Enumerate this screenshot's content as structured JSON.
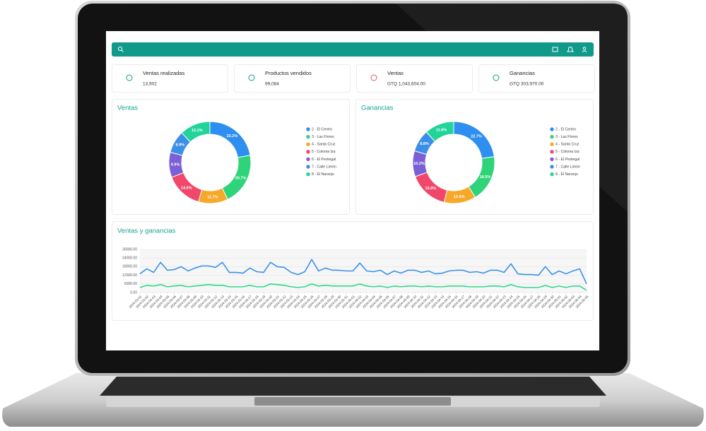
{
  "cards": [
    {
      "title": "Ventas realizadas",
      "value": "13,902"
    },
    {
      "title": "Productos vendidos",
      "value": "99,084"
    },
    {
      "title": "Ventas",
      "value": "GTQ 1,043,604.00"
    },
    {
      "title": "Ganancias",
      "value": "GTQ 303,970.00"
    }
  ],
  "chart_data": [
    {
      "type": "pie",
      "title": "Ventas",
      "categories": [
        "2 - El Centro",
        "3 - Las Flores",
        "4 - Santa Cruz",
        "5 - Colonia Iza",
        "6 - El Pedregal",
        "7 - Calle Limón",
        "8 - El Naranjo"
      ],
      "values": [
        22.2,
        20.7,
        11.7,
        14.6,
        9.9,
        8.9,
        12.1
      ],
      "value_labels": [
        "22.2%",
        "20.7%",
        "11.7%",
        "14.6%",
        "9.9%",
        "8.9%",
        "12.1%"
      ],
      "colors": [
        "#2e8ff0",
        "#2fd47a",
        "#f7a828",
        "#f0476a",
        "#7a5fd6",
        "#3b8fe8",
        "#22d39a"
      ]
    },
    {
      "type": "pie",
      "title": "Ganancias",
      "categories": [
        "2 - El Centro",
        "3 - Las Flores",
        "4 - Santa Cruz",
        "5 - Colonia Iza",
        "6 - El Pedregal",
        "7 - Calle Limón",
        "8 - El Naranjo"
      ],
      "values": [
        22.7,
        18.5,
        12.6,
        15.6,
        10.2,
        8.8,
        11.6
      ],
      "value_labels": [
        "22.7%",
        "18.5%",
        "12.6%",
        "15.6%",
        "10.2%",
        "8.8%",
        "11.6%"
      ],
      "colors": [
        "#2e8ff0",
        "#2fd47a",
        "#f7a828",
        "#f0476a",
        "#7a5fd6",
        "#3b8fe8",
        "#22d39a"
      ]
    },
    {
      "type": "line",
      "title": "Ventas y ganancias",
      "x": [
        "2024-03-01",
        "2024-03-02",
        "2024-03-03",
        "2024-03-04",
        "2024-03-05",
        "2024-03-06",
        "2024-03-07",
        "2024-03-08",
        "2024-03-09",
        "2024-03-10",
        "2024-03-11",
        "2024-03-12",
        "2024-03-13",
        "2024-03-14",
        "2024-03-15",
        "2024-03-16",
        "2024-03-17",
        "2024-03-18",
        "2024-03-19",
        "2024-03-20",
        "2024-03-21",
        "2024-03-22",
        "2024-03-23",
        "2024-03-24",
        "2024-03-25",
        "2024-03-26",
        "2024-03-27",
        "2024-03-28",
        "2024-03-29",
        "2024-03-30",
        "2024-03-31",
        "2024-04-01",
        "2024-04-02",
        "2024-04-03",
        "2024-04-04",
        "2024-04-05",
        "2024-04-06",
        "2024-04-07",
        "2024-04-08",
        "2024-04-09",
        "2024-04-10",
        "2024-04-11",
        "2024-04-12",
        "2024-04-13",
        "2024-04-14",
        "2024-04-15",
        "2024-04-16",
        "2024-04-17",
        "2024-04-18",
        "2024-04-19",
        "2024-04-20",
        "2024-04-21",
        "2024-04-22",
        "2024-04-23",
        "2024-04-24",
        "2024-04-25",
        "2024-04-26",
        "2024-04-27",
        "2024-04-28",
        "2024-04-29",
        "2024-04-30",
        "2024-05-01",
        "2024-05-02",
        "2024-05-03",
        "2024-05-04",
        "2024-05-05"
      ],
      "ylim": [
        0,
        30000
      ],
      "yticks": [
        {
          "value": 0,
          "label": "0.00"
        },
        {
          "value": 6000,
          "label": "6000.00"
        },
        {
          "value": 12000,
          "label": "12000.00"
        },
        {
          "value": 18000,
          "label": "18000.00"
        },
        {
          "value": 24000,
          "label": "24000.00"
        },
        {
          "value": 30000,
          "label": "30000.00"
        }
      ],
      "grid": true,
      "series": [
        {
          "color": "#3a92ea",
          "values": [
            13000,
            16500,
            14000,
            21000,
            15500,
            16000,
            18000,
            15000,
            17000,
            18500,
            18500,
            17500,
            21000,
            14000,
            14000,
            13500,
            17000,
            14500,
            14000,
            21000,
            18000,
            17500,
            14000,
            12500,
            14500,
            23000,
            15000,
            17000,
            15500,
            15500,
            15000,
            15000,
            20500,
            15000,
            14500,
            15500,
            12500,
            15000,
            13500,
            15500,
            15500,
            14000,
            15000,
            13000,
            13500,
            15000,
            15500,
            15500,
            14000,
            14500,
            13500,
            15500,
            15500,
            14000,
            20000,
            13000,
            12500,
            12500,
            12000,
            18000,
            12500,
            15000,
            13000,
            15000,
            16500,
            6000
          ]
        },
        {
          "color": "#2fd98f",
          "values": [
            3500,
            5000,
            4500,
            5500,
            4000,
            4500,
            5000,
            4000,
            4500,
            5000,
            5500,
            5000,
            5000,
            4000,
            4000,
            4000,
            5000,
            4000,
            4000,
            6000,
            5500,
            5000,
            4000,
            3500,
            4000,
            6000,
            4500,
            5000,
            4500,
            4500,
            4500,
            4500,
            6000,
            4500,
            4000,
            4500,
            3500,
            4500,
            4000,
            4500,
            4500,
            4000,
            4500,
            4000,
            4000,
            4500,
            4500,
            4500,
            4000,
            4000,
            4000,
            4500,
            4500,
            4000,
            5500,
            4000,
            3500,
            3500,
            3500,
            5000,
            3500,
            4500,
            3500,
            4500,
            4500,
            1500
          ]
        }
      ]
    }
  ]
}
